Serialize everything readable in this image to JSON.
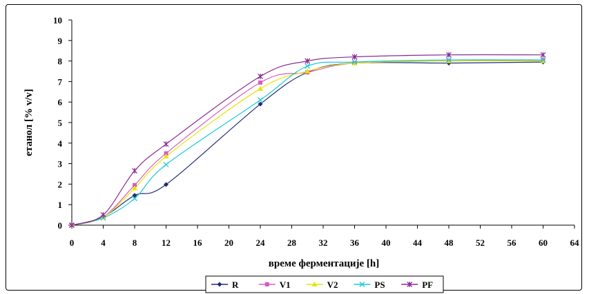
{
  "chart_data": {
    "type": "line",
    "title": "",
    "xlabel": "време ферментације [h]",
    "ylabel": "етанол [% v/v]",
    "xlim": [
      0,
      64
    ],
    "ylim": [
      0,
      10
    ],
    "xticks": [
      0,
      4,
      8,
      12,
      16,
      20,
      24,
      28,
      32,
      36,
      40,
      44,
      48,
      52,
      56,
      60,
      64
    ],
    "yticks": [
      0,
      1,
      2,
      3,
      4,
      5,
      6,
      7,
      8,
      9,
      10
    ],
    "grid": false,
    "legend_position": "bottom",
    "x": [
      0,
      4,
      8,
      12,
      24,
      30,
      36,
      48,
      60
    ],
    "series": [
      {
        "name": "R",
        "color": "#1f2b78",
        "marker": "diamond",
        "values": [
          0,
          0.4,
          1.45,
          1.98,
          5.9,
          7.45,
          7.9,
          7.9,
          7.95
        ]
      },
      {
        "name": "V1",
        "color": "#d65cc2",
        "marker": "square",
        "values": [
          0,
          0.4,
          1.95,
          3.5,
          6.95,
          7.45,
          7.9,
          8.0,
          8.05
        ]
      },
      {
        "name": "V2",
        "color": "#e6e600",
        "marker": "triangle",
        "values": [
          0,
          0.38,
          1.8,
          3.35,
          6.65,
          7.5,
          7.9,
          8.0,
          8.0
        ]
      },
      {
        "name": "PS",
        "color": "#19c8dc",
        "marker": "x",
        "values": [
          0,
          0.35,
          1.3,
          2.95,
          6.1,
          7.75,
          7.95,
          8.05,
          8.05
        ]
      },
      {
        "name": "PF",
        "color": "#8a2b96",
        "marker": "star",
        "values": [
          0,
          0.5,
          2.65,
          3.95,
          7.25,
          8.0,
          8.2,
          8.3,
          8.3
        ]
      }
    ]
  }
}
